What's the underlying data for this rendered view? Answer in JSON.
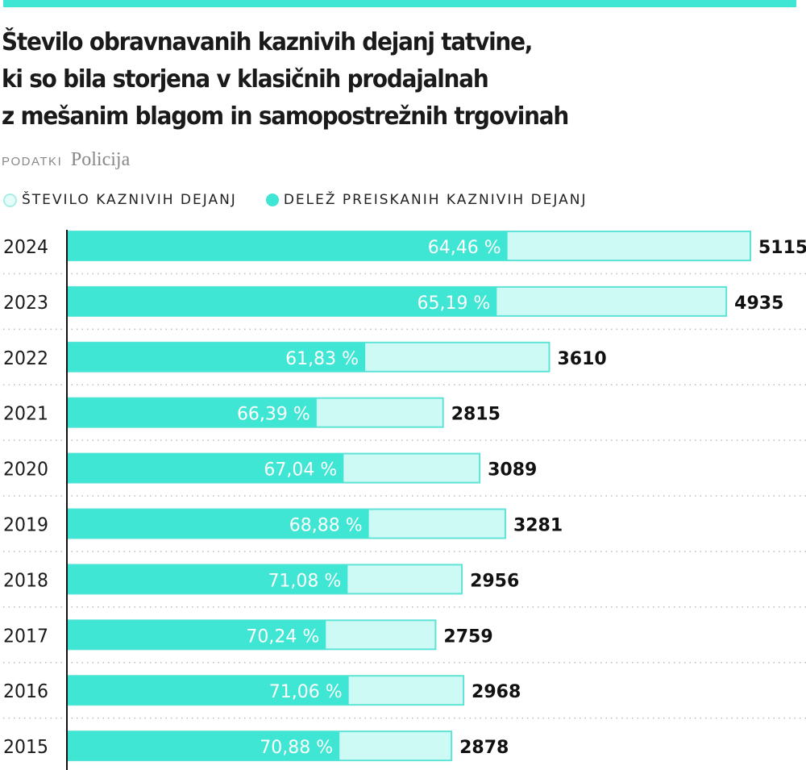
{
  "title": "Število obravnavanih kaznivih dejanj tatvine, ki so bila storjena v klasičnih prodajalnah z mešanim blagom in samopostrežnih trgovinah",
  "title_lines": [
    "Število obravnavanih kaznivih dejanj tatvine,",
    "ki so bila storjena v klasičnih prodajalnah",
    "z mešanim blagom in samopostrežnih trgovinah"
  ],
  "source_label": "PODATKI",
  "source_value": "Policija",
  "colors": {
    "accent": "#40e6d4",
    "light": "#cefaf5",
    "border": "#5fe3d6",
    "text": "#1a1a1a"
  },
  "chart_data": {
    "type": "bar",
    "orientation": "horizontal",
    "legend": [
      {
        "name": "ŠTEVILO KAZNIVIH DEJANJ",
        "style": "outline"
      },
      {
        "name": "DELEŽ PREISKANIH KAZNIVIH DEJANJ",
        "style": "filled"
      }
    ],
    "legend_placement": "top-left",
    "grid": "dotted horizontal separators",
    "categories": [
      "2024",
      "2023",
      "2022",
      "2021",
      "2020",
      "2019",
      "2018",
      "2017",
      "2016",
      "2015"
    ],
    "series": [
      {
        "name": "ŠTEVILO KAZNIVIH DEJANJ",
        "values": [
          5115,
          4935,
          3610,
          2815,
          3089,
          3281,
          2956,
          2759,
          2968,
          2878
        ],
        "labels": [
          "5115",
          "4935",
          "3610",
          "2815",
          "3089",
          "3281",
          "2956",
          "2759",
          "2968",
          "2878"
        ]
      },
      {
        "name": "DELEŽ PREISKANIH KAZNIVIH DEJANJ",
        "values": [
          64.46,
          65.19,
          61.83,
          66.39,
          67.04,
          68.88,
          71.08,
          70.24,
          71.06,
          70.88
        ],
        "labels": [
          "64,46 %",
          "65,19 %",
          "61,83 %",
          "66,39 %",
          "67,04 %",
          "68,88 %",
          "71,08 %",
          "70,24 %",
          "71,06 %",
          "70,88 %"
        ]
      }
    ],
    "xlim": [
      0,
      5115
    ]
  }
}
